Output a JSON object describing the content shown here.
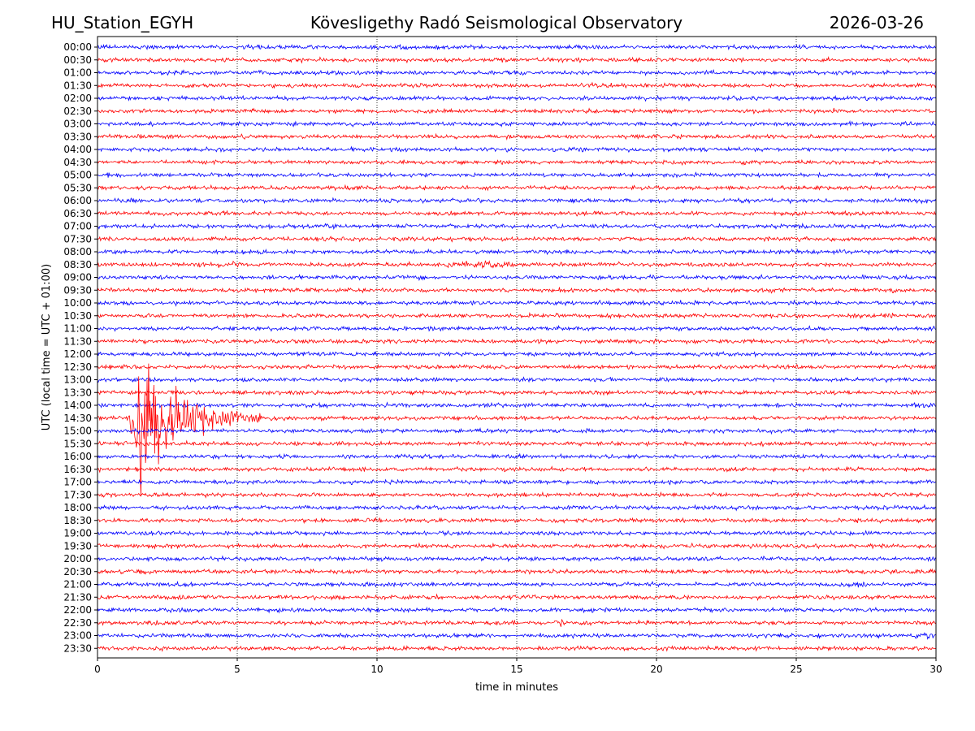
{
  "header": {
    "station": "HU_Station_EGYH",
    "title": "Kövesligethy Radó Seismological Observatory",
    "date": "2026-03-26"
  },
  "chart_data": {
    "type": "line",
    "subtype": "helicorder",
    "xlabel": "time in minutes",
    "ylabel": "UTC (local time = UTC + 01:00)",
    "xlim": [
      0,
      30
    ],
    "x_ticks": [
      "0",
      "5",
      "10",
      "15",
      "20",
      "25",
      "30"
    ],
    "vertical_gridlines_at": [
      5,
      10,
      15,
      20,
      25
    ],
    "rows": [
      "00:00",
      "00:30",
      "01:00",
      "01:30",
      "02:00",
      "02:30",
      "03:00",
      "03:30",
      "04:00",
      "04:30",
      "05:00",
      "05:30",
      "06:00",
      "06:30",
      "07:00",
      "07:30",
      "08:00",
      "08:30",
      "09:00",
      "09:30",
      "10:00",
      "10:30",
      "11:00",
      "11:30",
      "12:00",
      "12:30",
      "13:00",
      "13:30",
      "14:00",
      "14:30",
      "15:00",
      "15:30",
      "16:00",
      "16:30",
      "17:00",
      "17:30",
      "18:00",
      "18:30",
      "19:00",
      "19:30",
      "20:00",
      "20:30",
      "21:00",
      "21:30",
      "22:00",
      "22:30",
      "23:00",
      "23:30"
    ],
    "trace_colors": [
      "#0000ff",
      "#ff0000"
    ],
    "events": [
      {
        "row": "14:30",
        "start_min": 1.1,
        "peak_min": 1.5,
        "end_min": 7.5,
        "peak_rel_amplitude": 4.0,
        "color": "#ff0000"
      },
      {
        "row": "08:30",
        "start_min": 3.0,
        "end_min": 5.5,
        "peak_rel_amplitude": 1.3,
        "color": "#ff0000"
      },
      {
        "row": "08:30",
        "start_min": 11.8,
        "end_min": 15.5,
        "peak_rel_amplitude": 1.5,
        "color": "#ff0000"
      },
      {
        "row": "21:00",
        "start_min": 27.0,
        "end_min": 27.8,
        "peak_rel_amplitude": 1.4,
        "color": "#0000ff"
      },
      {
        "row": "21:30",
        "start_min": 16.2,
        "end_min": 16.6,
        "peak_rel_amplitude": 1.5,
        "color": "#ff0000"
      },
      {
        "row": "22:30",
        "start_min": 16.3,
        "end_min": 16.8,
        "peak_rel_amplitude": 1.4,
        "color": "#ff0000"
      },
      {
        "row": "23:00",
        "start_min": 29.2,
        "end_min": 30.0,
        "peak_rel_amplitude": 1.5,
        "color": "#0000ff"
      },
      {
        "row": "23:30",
        "start_min": 19.8,
        "end_min": 20.8,
        "peak_rel_amplitude": 1.3,
        "color": "#ff0000"
      }
    ]
  }
}
